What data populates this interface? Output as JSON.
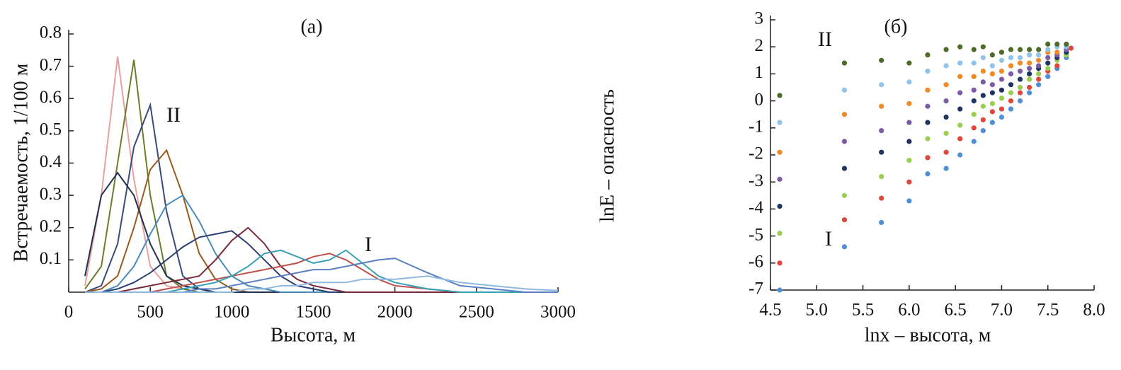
{
  "chart_data": [
    {
      "type": "line",
      "title": "(а)",
      "xlabel": "Высота, м",
      "ylabel": "Встречаемость, 1/100 м",
      "annotations": [
        "II",
        "I"
      ],
      "xlim": [
        0,
        3000
      ],
      "xticks": [
        0,
        500,
        1000,
        1500,
        2000,
        2500,
        3000
      ],
      "ylim": [
        0,
        0.8
      ],
      "yticks": [
        0.1,
        0.2,
        0.3,
        0.4,
        0.5,
        0.6,
        0.7,
        0.8
      ],
      "x": [
        100,
        200,
        300,
        400,
        500,
        600,
        700,
        800,
        900,
        1000,
        1100,
        1200,
        1300,
        1400,
        1500,
        1600,
        1700,
        1800,
        1900,
        2000,
        2200,
        2400,
        2600,
        2800,
        3000
      ],
      "series": [
        {
          "color": "#e8a0a0",
          "values": [
            0.02,
            0.3,
            0.73,
            0.35,
            0.08,
            0.02,
            0.01,
            0,
            0,
            0,
            0,
            0,
            0,
            0,
            0,
            0,
            0,
            0,
            0,
            0,
            0,
            0,
            0,
            0,
            0
          ]
        },
        {
          "color": "#6b7d2a",
          "values": [
            0.01,
            0.08,
            0.4,
            0.72,
            0.3,
            0.05,
            0.01,
            0,
            0,
            0,
            0,
            0,
            0,
            0,
            0,
            0,
            0,
            0,
            0,
            0,
            0,
            0,
            0,
            0,
            0
          ]
        },
        {
          "color": "#3c4a7a",
          "values": [
            0,
            0.02,
            0.15,
            0.45,
            0.58,
            0.25,
            0.05,
            0.01,
            0,
            0,
            0,
            0,
            0,
            0,
            0,
            0,
            0,
            0,
            0,
            0,
            0,
            0,
            0,
            0,
            0
          ]
        },
        {
          "color": "#9a5a1e",
          "values": [
            0,
            0.01,
            0.05,
            0.2,
            0.38,
            0.44,
            0.3,
            0.12,
            0.04,
            0.01,
            0,
            0,
            0,
            0,
            0,
            0,
            0,
            0,
            0,
            0,
            0,
            0,
            0,
            0,
            0
          ]
        },
        {
          "color": "#22304f",
          "values": [
            0.05,
            0.3,
            0.37,
            0.3,
            0.15,
            0.05,
            0.02,
            0.01,
            0,
            0,
            0,
            0,
            0,
            0,
            0,
            0,
            0,
            0,
            0,
            0,
            0,
            0,
            0,
            0,
            0
          ]
        },
        {
          "color": "#4a8bb8",
          "values": [
            0,
            0,
            0.02,
            0.08,
            0.18,
            0.27,
            0.3,
            0.22,
            0.12,
            0.05,
            0.02,
            0.01,
            0,
            0,
            0,
            0,
            0,
            0,
            0,
            0,
            0,
            0,
            0,
            0,
            0
          ]
        },
        {
          "color": "#2b3f73",
          "values": [
            0,
            0,
            0.01,
            0.03,
            0.06,
            0.1,
            0.14,
            0.17,
            0.18,
            0.19,
            0.15,
            0.1,
            0.05,
            0.02,
            0.01,
            0,
            0,
            0,
            0,
            0,
            0,
            0,
            0,
            0,
            0
          ]
        },
        {
          "color": "#7a2a3a",
          "values": [
            0,
            0,
            0,
            0.01,
            0.02,
            0.03,
            0.04,
            0.05,
            0.1,
            0.16,
            0.2,
            0.15,
            0.08,
            0.04,
            0.02,
            0.01,
            0,
            0,
            0,
            0,
            0,
            0,
            0,
            0,
            0
          ]
        },
        {
          "color": "#c0504d",
          "values": [
            0,
            0,
            0,
            0,
            0,
            0.01,
            0.02,
            0.03,
            0.04,
            0.05,
            0.06,
            0.07,
            0.08,
            0.09,
            0.11,
            0.12,
            0.1,
            0.07,
            0.04,
            0.02,
            0.01,
            0,
            0,
            0,
            0
          ]
        },
        {
          "color": "#3aa0b8",
          "values": [
            0,
            0,
            0,
            0,
            0,
            0,
            0.01,
            0.02,
            0.03,
            0.05,
            0.08,
            0.12,
            0.13,
            0.11,
            0.09,
            0.1,
            0.13,
            0.09,
            0.05,
            0.03,
            0.01,
            0,
            0,
            0,
            0
          ]
        },
        {
          "color": "#5b7fc4",
          "values": [
            0,
            0,
            0,
            0,
            0,
            0,
            0,
            0.01,
            0.01,
            0.02,
            0.03,
            0.04,
            0.05,
            0.06,
            0.07,
            0.07,
            0.08,
            0.09,
            0.1,
            0.105,
            0.06,
            0.02,
            0.01,
            0,
            0
          ]
        },
        {
          "color": "#8fb8de",
          "values": [
            0,
            0,
            0,
            0,
            0,
            0,
            0,
            0,
            0,
            0,
            0.01,
            0.01,
            0.02,
            0.02,
            0.03,
            0.03,
            0.03,
            0.04,
            0.04,
            0.04,
            0.05,
            0.03,
            0.02,
            0.01,
            0.005
          ]
        }
      ]
    },
    {
      "type": "scatter",
      "title": "(б)",
      "xlabel": "lnx – высота, м",
      "ylabel": "lnE – опасность",
      "annotations": [
        "II",
        "I"
      ],
      "xlim": [
        4.5,
        8.0
      ],
      "xticks": [
        4.5,
        {
          "value": 5,
          "label": "5.0"
        },
        5.5,
        {
          "value": 6,
          "label": "6.0"
        },
        6.5,
        {
          "value": 7,
          "label": "7.0"
        },
        7.5,
        {
          "value": 8,
          "label": "8.0"
        }
      ],
      "ylim": [
        -7,
        3
      ],
      "yticks": [
        -7,
        -6,
        -5,
        -4,
        -3,
        -2,
        -1,
        0,
        1,
        2,
        3
      ],
      "x": [
        4.6,
        5.3,
        5.7,
        6.0,
        6.2,
        6.4,
        6.55,
        6.7,
        6.8,
        6.9,
        7.0,
        7.1,
        7.2,
        7.3,
        7.4,
        7.5,
        7.6,
        7.7,
        7.75
      ],
      "series": [
        {
          "color": "#4f8fd6",
          "values": [
            -7,
            -5.4,
            -4.5,
            -3.7,
            -2.7,
            -2.5,
            -2,
            -1.5,
            -1.1,
            -0.8,
            -0.6,
            -0.3,
            0,
            0.3,
            0.6,
            0.9,
            1.2,
            1.6,
            1.95
          ]
        },
        {
          "color": "#e0463c",
          "values": [
            -6,
            -4.4,
            -3.6,
            -3,
            -2.1,
            -1.9,
            -1.4,
            -1,
            -0.7,
            -0.4,
            -0.3,
            0,
            0.3,
            0.5,
            0.8,
            1.1,
            1.3,
            1.7,
            1.95
          ]
        },
        {
          "color": "#9acd50",
          "values": [
            -4.9,
            -3.5,
            -2.8,
            -2.2,
            -1.4,
            -1.2,
            -0.9,
            -0.5,
            -0.2,
            -0.1,
            0.1,
            0.3,
            0.5,
            0.8,
            1,
            1.2,
            1.5,
            1.7,
            null
          ]
        },
        {
          "color": "#1f3560",
          "values": [
            -3.9,
            -2.5,
            -1.9,
            -1.5,
            -0.8,
            -0.6,
            -0.3,
            0,
            0.2,
            0.3,
            0.4,
            0.6,
            0.8,
            1,
            1.2,
            1.4,
            1.6,
            1.8,
            null
          ]
        },
        {
          "color": "#7b5aa6",
          "values": [
            -2.9,
            -1.5,
            -1.1,
            -0.8,
            -0.2,
            0,
            0.3,
            0.4,
            0.7,
            0.6,
            0.8,
            1,
            1.1,
            1.2,
            1.3,
            1.6,
            1.7,
            1.9,
            null
          ]
        },
        {
          "color": "#f08a24",
          "values": [
            -1.9,
            -0.5,
            -0.2,
            -0.1,
            0.4,
            0.6,
            0.9,
            0.9,
            1.1,
            1,
            1.1,
            1.3,
            1.4,
            1.4,
            1.5,
            1.8,
            1.8,
            2,
            null
          ]
        },
        {
          "color": "#8fc3ea",
          "values": [
            -0.8,
            0.4,
            0.6,
            0.7,
            1.1,
            1.3,
            1.4,
            1.4,
            1.6,
            1.3,
            1.5,
            1.6,
            1.6,
            1.7,
            1.7,
            1.9,
            2,
            2,
            null
          ]
        },
        {
          "color": "#4e6b2a",
          "values": [
            0.2,
            1.4,
            1.5,
            1.4,
            1.7,
            1.9,
            2,
            1.9,
            2,
            1.7,
            1.8,
            1.9,
            1.9,
            1.9,
            1.9,
            2.1,
            2.1,
            2.1,
            null
          ]
        }
      ]
    }
  ]
}
